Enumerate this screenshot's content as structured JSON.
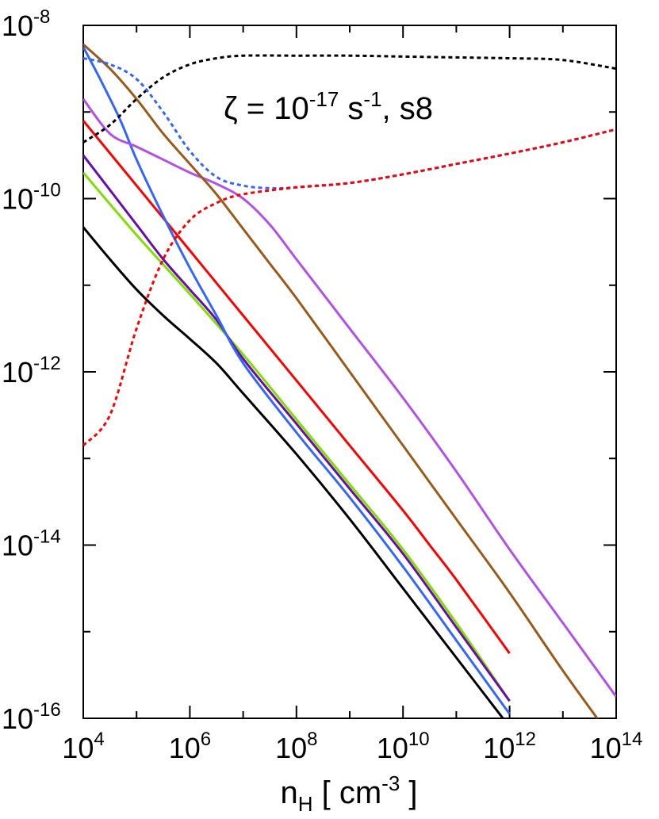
{
  "chart_data": {
    "type": "line",
    "title": "",
    "annotation": {
      "symbol": "ζ = 10",
      "exp": "-17",
      "unit": " s",
      "unit_exp": "-1",
      "suffix": ", s8"
    },
    "xlabel": {
      "base": "n",
      "sub": "H",
      "mid": " [ cm",
      "exp": "-3",
      "end": " ]"
    },
    "ylabel": "",
    "xscale": "log",
    "yscale": "log",
    "xlim_log10": [
      4,
      14
    ],
    "ylim_log10": [
      -16,
      -8
    ],
    "x_ticks": [
      {
        "base": "10",
        "exp": "4",
        "log": 4
      },
      {
        "base": "10",
        "exp": "6",
        "log": 6
      },
      {
        "base": "10",
        "exp": "8",
        "log": 8
      },
      {
        "base": "10",
        "exp": "10",
        "log": 10
      },
      {
        "base": "10",
        "exp": "12",
        "log": 12
      },
      {
        "base": "10",
        "exp": "14",
        "log": 14
      }
    ],
    "y_ticks": [
      {
        "base": "10",
        "exp": "-8",
        "log": -8
      },
      {
        "base": "10",
        "exp": "-10",
        "log": -10
      },
      {
        "base": "10",
        "exp": "-12",
        "log": -12
      },
      {
        "base": "10",
        "exp": "-14",
        "log": -14
      },
      {
        "base": "10",
        "exp": "-16",
        "log": -16
      }
    ],
    "grid": false,
    "legend": "none",
    "series": [
      {
        "color": "#000000",
        "dash": "solid",
        "points": [
          [
            4,
            -10.33
          ],
          [
            4.5,
            -10.7
          ],
          [
            5,
            -11.05
          ],
          [
            5.5,
            -11.35
          ],
          [
            6,
            -11.62
          ],
          [
            6.5,
            -11.9
          ],
          [
            7,
            -12.25
          ],
          [
            8,
            -12.95
          ],
          [
            9,
            -13.7
          ],
          [
            10,
            -14.5
          ],
          [
            10.5,
            -14.9
          ],
          [
            11,
            -15.3
          ],
          [
            12,
            -16.1
          ]
        ]
      },
      {
        "color": "#7fe000",
        "dash": "solid",
        "points": [
          [
            4,
            -9.7
          ],
          [
            5,
            -10.42
          ],
          [
            6,
            -11.1
          ],
          [
            7,
            -11.8
          ],
          [
            8,
            -12.55
          ],
          [
            9,
            -13.3
          ],
          [
            10,
            -14.05
          ],
          [
            11,
            -14.9
          ],
          [
            12,
            -15.8
          ]
        ]
      },
      {
        "color": "#6a0dad",
        "dash": "solid",
        "points": [
          [
            4,
            -9.5
          ],
          [
            4.5,
            -9.9
          ],
          [
            5,
            -10.3
          ],
          [
            5.5,
            -10.7
          ],
          [
            6,
            -11.05
          ],
          [
            6.5,
            -11.4
          ],
          [
            7,
            -11.85
          ],
          [
            8,
            -12.6
          ],
          [
            9,
            -13.35
          ],
          [
            10,
            -14.1
          ],
          [
            11,
            -14.95
          ],
          [
            12,
            -15.8
          ]
        ]
      },
      {
        "color": "#ff0000",
        "dash": "solid",
        "points": [
          [
            4,
            -9.1
          ],
          [
            5,
            -9.85
          ],
          [
            6,
            -10.6
          ],
          [
            7,
            -11.35
          ],
          [
            8,
            -12.1
          ],
          [
            9,
            -12.85
          ],
          [
            10,
            -13.6
          ],
          [
            10.5,
            -14.0
          ],
          [
            11,
            -14.4
          ],
          [
            12,
            -15.25
          ]
        ]
      },
      {
        "color": "#3366ff",
        "dash": "solid",
        "points": [
          [
            4,
            -8.25
          ],
          [
            4.3,
            -8.6
          ],
          [
            4.7,
            -9.1
          ],
          [
            5,
            -9.55
          ],
          [
            5.5,
            -10.2
          ],
          [
            6,
            -10.8
          ],
          [
            6.5,
            -11.35
          ],
          [
            7,
            -11.9
          ],
          [
            8,
            -12.7
          ],
          [
            9,
            -13.45
          ],
          [
            10,
            -14.25
          ],
          [
            11,
            -15.1
          ],
          [
            12,
            -15.95
          ]
        ]
      },
      {
        "color": "#b44fe8",
        "dash": "solid",
        "points": [
          [
            4,
            -8.85
          ],
          [
            4.5,
            -9.25
          ],
          [
            5,
            -9.4
          ],
          [
            5.5,
            -9.55
          ],
          [
            6,
            -9.7
          ],
          [
            6.5,
            -9.83
          ],
          [
            7,
            -10.0
          ],
          [
            7.5,
            -10.3
          ],
          [
            8,
            -10.7
          ],
          [
            9,
            -11.5
          ],
          [
            10,
            -12.3
          ],
          [
            11,
            -13.15
          ],
          [
            12,
            -14.05
          ],
          [
            13,
            -14.9
          ],
          [
            14,
            -15.75
          ]
        ]
      },
      {
        "color": "#9b5a1a",
        "dash": "solid",
        "points": [
          [
            4,
            -8.22
          ],
          [
            4.5,
            -8.5
          ],
          [
            5,
            -8.85
          ],
          [
            5.5,
            -9.25
          ],
          [
            6,
            -9.6
          ],
          [
            6.5,
            -9.95
          ],
          [
            7,
            -10.35
          ],
          [
            7.5,
            -10.75
          ],
          [
            8,
            -11.15
          ],
          [
            9,
            -12.0
          ],
          [
            10,
            -12.85
          ],
          [
            11,
            -13.7
          ],
          [
            12,
            -14.55
          ],
          [
            13,
            -15.45
          ],
          [
            14,
            -16.3
          ]
        ]
      },
      {
        "color": "#000000",
        "dash": "dotted",
        "points": [
          [
            4,
            -9.35
          ],
          [
            4.5,
            -9.15
          ],
          [
            5,
            -8.85
          ],
          [
            5.5,
            -8.6
          ],
          [
            6,
            -8.45
          ],
          [
            6.5,
            -8.38
          ],
          [
            7,
            -8.35
          ],
          [
            8,
            -8.35
          ],
          [
            9,
            -8.35
          ],
          [
            10,
            -8.36
          ],
          [
            11,
            -8.37
          ],
          [
            12,
            -8.38
          ],
          [
            13,
            -8.4
          ],
          [
            14,
            -8.5
          ]
        ]
      },
      {
        "color": "#3366ff",
        "dash": "dotted",
        "points": [
          [
            4,
            -8.38
          ],
          [
            4.5,
            -8.45
          ],
          [
            5,
            -8.62
          ],
          [
            5.5,
            -9.0
          ],
          [
            6,
            -9.45
          ],
          [
            6.5,
            -9.75
          ],
          [
            7,
            -9.85
          ],
          [
            7.5,
            -9.88
          ],
          [
            8,
            -9.87
          ],
          [
            9,
            -9.82
          ],
          [
            10,
            -9.72
          ],
          [
            11,
            -9.6
          ],
          [
            12,
            -9.48
          ],
          [
            13,
            -9.35
          ],
          [
            14,
            -9.2
          ]
        ]
      },
      {
        "color": "#ff0000",
        "dash": "dotted",
        "points": [
          [
            4,
            -12.85
          ],
          [
            4.5,
            -12.5
          ],
          [
            5,
            -11.5
          ],
          [
            5.5,
            -10.7
          ],
          [
            6,
            -10.25
          ],
          [
            6.5,
            -10.05
          ],
          [
            7,
            -9.95
          ],
          [
            8,
            -9.87
          ],
          [
            9,
            -9.82
          ],
          [
            10,
            -9.72
          ],
          [
            11,
            -9.6
          ],
          [
            12,
            -9.48
          ],
          [
            13,
            -9.35
          ],
          [
            14,
            -9.2
          ]
        ]
      }
    ]
  }
}
